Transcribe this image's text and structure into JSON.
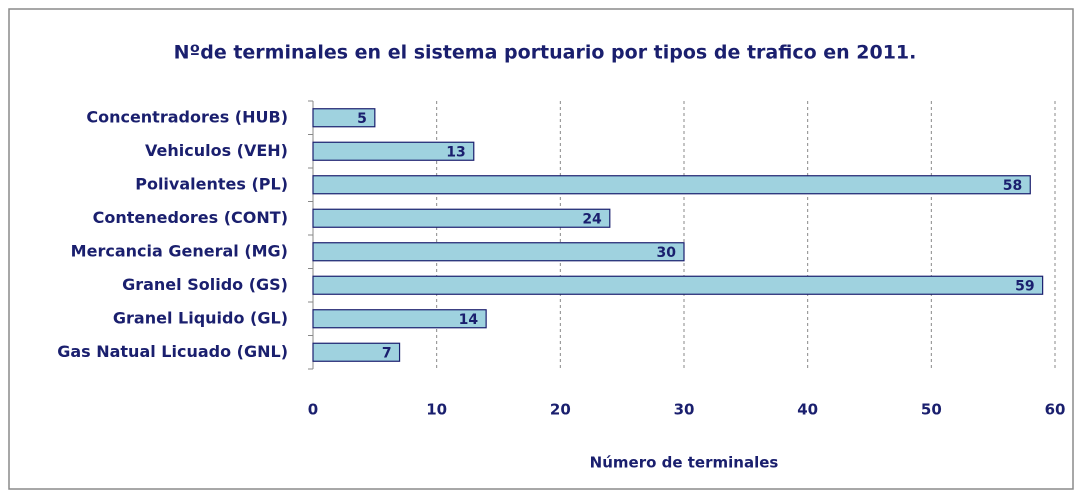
{
  "chart_data": {
    "type": "bar",
    "orientation": "horizontal",
    "title": "Nºde terminales en el sistema portuario por tipos de trafico en 2011.",
    "x_label": "Número de terminales",
    "categories": [
      "Concentradores (HUB)",
      "Vehiculos (VEH)",
      "Polivalentes (PL)",
      "Contenedores (CONT)",
      "Mercancia General (MG)",
      "Granel Solido (GS)",
      "Granel Liquido (GL)",
      "Gas Natual Licuado (GNL)"
    ],
    "values": [
      5,
      13,
      58,
      24,
      30,
      59,
      14,
      7
    ],
    "color": "#9fd2df",
    "xlim": [
      0,
      60
    ],
    "xticks": [
      0,
      10,
      20,
      30,
      40,
      50,
      60
    ],
    "grid": true
  }
}
